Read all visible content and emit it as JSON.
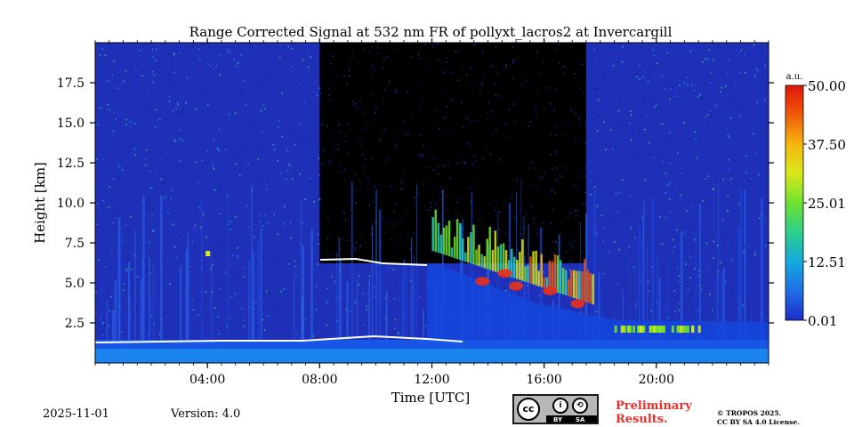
{
  "chart_data": {
    "type": "heatmap",
    "title": "Range Corrected Signal at 532 nm FR of pollyxt_lacros2 at Invercargill",
    "xlabel": "Time [UTC]",
    "ylabel": "Height [km]",
    "xlim_hours": [
      0,
      24
    ],
    "ylim_km": [
      0,
      20
    ],
    "xticks": [
      {
        "hour": 4,
        "label": "04:00"
      },
      {
        "hour": 8,
        "label": "08:00"
      },
      {
        "hour": 12,
        "label": "12:00"
      },
      {
        "hour": 16,
        "label": "16:00"
      },
      {
        "hour": 20,
        "label": "20:00"
      }
    ],
    "yticks": [
      {
        "km": 2.5,
        "label": "2.5"
      },
      {
        "km": 5.0,
        "label": "5.0"
      },
      {
        "km": 7.5,
        "label": "7.5"
      },
      {
        "km": 10.0,
        "label": "10.0"
      },
      {
        "km": 12.5,
        "label": "12.5"
      },
      {
        "km": 15.0,
        "label": "15.0"
      },
      {
        "km": 17.5,
        "label": "17.5"
      }
    ],
    "colorbar": {
      "unit": "a.u.",
      "min": 0.01,
      "max": 50.0,
      "ticks": [
        {
          "value": 0.01,
          "label": "0.01"
        },
        {
          "value": 12.51,
          "label": "12.51"
        },
        {
          "value": 25.01,
          "label": "25.01"
        },
        {
          "value": 37.5,
          "label": "37.50"
        },
        {
          "value": 50.0,
          "label": "50.00"
        }
      ],
      "colors": [
        "#1e2cc8",
        "#1e6ee6",
        "#14aadc",
        "#2ccf8c",
        "#6fe22e",
        "#d8e81a",
        "#f6b70f",
        "#f05a0a",
        "#e0160a"
      ]
    },
    "features": {
      "masked_periods_hours": [
        [
          8.0,
          17.5
        ]
      ],
      "boundary_layer_top_km": 1.3,
      "cloud_layers": [
        {
          "start_hour": 7.8,
          "end_hour": 11.8,
          "height_km": 6.4
        },
        {
          "start_hour": 12.0,
          "end_hour": 17.8,
          "height_km_start": 7.0,
          "height_km_end": 3.6
        },
        {
          "start_hour": 18.5,
          "end_hour": 21.5,
          "height_km": 2.0
        }
      ]
    }
  },
  "footer": {
    "date": "2025-11-01",
    "version": "Version: 4.0",
    "preliminary_line1": "Preliminary",
    "preliminary_line2": "Results.",
    "copyright_line1": "© TROPOS 2025.",
    "copyright_line2": "CC BY SA 4.0 License.",
    "badge_cc": "cc",
    "badge_by": "BY",
    "badge_sa": "SA"
  },
  "colors": {
    "preliminary": "#e8302a",
    "background_masked": "#000000",
    "base_signal": "#1e3fd6"
  }
}
